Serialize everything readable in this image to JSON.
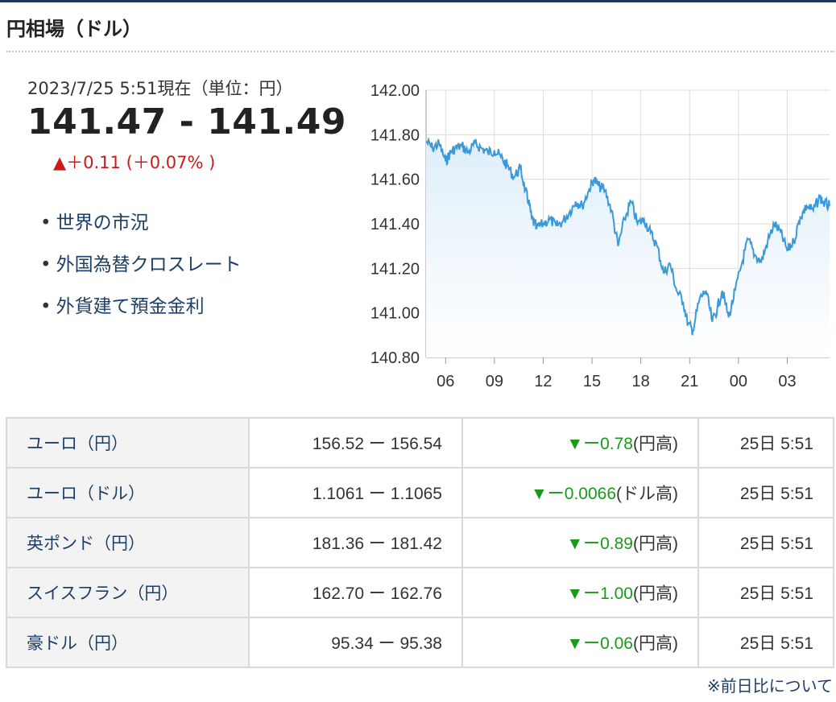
{
  "page": {
    "title": "円相場（ドル）"
  },
  "quote": {
    "datetime": "2023/7/25 5:51現在（単位：円）",
    "rate": "141.47 - 141.49",
    "change": "▲＋0.11 (＋0.07% )"
  },
  "links": [
    {
      "label": "世界の市況"
    },
    {
      "label": "外国為替クロスレート"
    },
    {
      "label": "外貨建て預金金利"
    }
  ],
  "chart_data": {
    "type": "line",
    "title": "",
    "xlabel": "",
    "ylabel": "",
    "ylim": [
      140.8,
      142.0
    ],
    "y_ticks": [
      "142.00",
      "141.80",
      "141.60",
      "141.40",
      "141.20",
      "141.00",
      "140.80"
    ],
    "x_ticks": [
      "06",
      "09",
      "12",
      "15",
      "18",
      "21",
      "00",
      "03"
    ],
    "x_range_hours": [
      4.8,
      29.6
    ],
    "series": [
      {
        "color": "#3a9ad9",
        "x": [
          4.8,
          5.2,
          5.6,
          6.0,
          6.3,
          6.6,
          7.0,
          7.4,
          7.8,
          8.2,
          8.6,
          9.0,
          9.4,
          9.8,
          10.2,
          10.6,
          10.9,
          11.1,
          11.3,
          11.6,
          12.0,
          12.4,
          12.8,
          13.2,
          13.6,
          14.0,
          14.4,
          14.8,
          15.1,
          15.4,
          15.8,
          16.2,
          16.6,
          17.0,
          17.4,
          17.8,
          18.2,
          18.6,
          19.0,
          19.4,
          19.8,
          20.2,
          20.6,
          20.9,
          21.2,
          21.6,
          22.0,
          22.4,
          22.7,
          23.0,
          23.4,
          23.8,
          24.2,
          24.6,
          25.0,
          25.4,
          25.8,
          26.2,
          26.6,
          27.0,
          27.4,
          27.8,
          28.2,
          28.6,
          29.0,
          29.3,
          29.6
        ],
        "y": [
          141.77,
          141.74,
          141.76,
          141.68,
          141.72,
          141.74,
          141.75,
          141.72,
          141.76,
          141.74,
          141.72,
          141.73,
          141.7,
          141.66,
          141.61,
          141.65,
          141.55,
          141.5,
          141.42,
          141.38,
          141.4,
          141.42,
          141.39,
          141.41,
          141.45,
          141.5,
          141.48,
          141.55,
          141.6,
          141.57,
          141.55,
          141.46,
          141.3,
          141.42,
          141.5,
          141.4,
          141.42,
          141.36,
          141.3,
          141.18,
          141.22,
          141.1,
          141.05,
          140.95,
          140.92,
          141.06,
          141.1,
          140.96,
          141.02,
          141.1,
          140.98,
          141.1,
          141.22,
          141.33,
          141.26,
          141.23,
          141.32,
          141.4,
          141.36,
          141.28,
          141.32,
          141.43,
          141.48,
          141.46,
          141.52,
          141.49,
          141.48
        ]
      }
    ]
  },
  "table": {
    "rows": [
      {
        "name": "ユーロ（円）",
        "value": "156.52 ー 156.54",
        "change": "▼ー0.78",
        "change_suffix": "(円高)",
        "time": "25日 5:51"
      },
      {
        "name": "ユーロ（ドル）",
        "value": "1.1061 ー 1.1065",
        "change": "▼ー0.0066",
        "change_suffix": "(ドル高)",
        "time": "25日 5:51"
      },
      {
        "name": "英ポンド（円）",
        "value": "181.36 ー 181.42",
        "change": "▼ー0.89",
        "change_suffix": "(円高)",
        "time": "25日 5:51"
      },
      {
        "name": "スイスフラン（円）",
        "value": "162.70 ー 162.76",
        "change": "▼ー1.00",
        "change_suffix": "(円高)",
        "time": "25日 5:51"
      },
      {
        "name": "豪ドル（円）",
        "value": "95.34 ー 95.38",
        "change": "▼ー0.06",
        "change_suffix": "(円高)",
        "time": "25日 5:51"
      }
    ]
  },
  "note": {
    "label": "※前日比について"
  },
  "colors": {
    "accent": "#1d3e66",
    "up": "#cc1a1a",
    "down": "#1a9a1a",
    "line": "#3a9ad9"
  }
}
